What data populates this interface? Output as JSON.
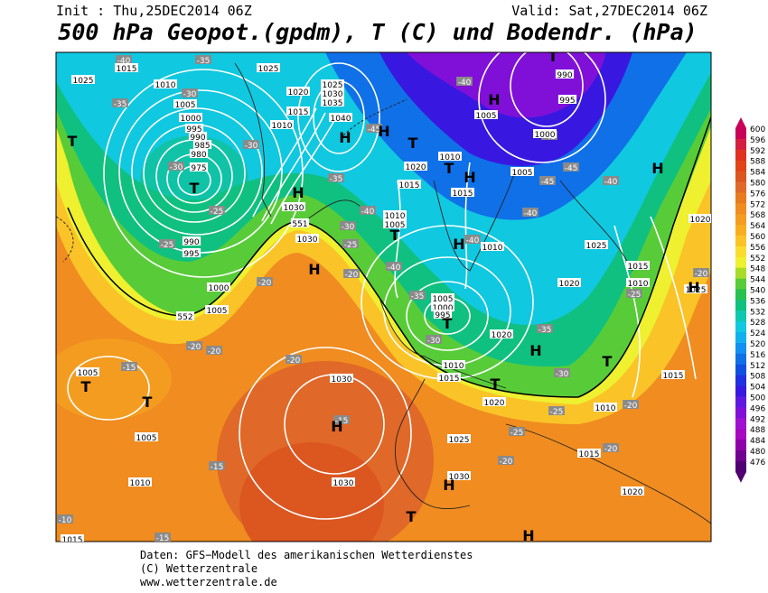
{
  "header": {
    "init": "Init : Thu,25DEC2014 06Z",
    "valid": "Valid: Sat,27DEC2014 06Z",
    "title": "500 hPa Geopot.(gpdm), T (C) und Bodendr. (hPa)"
  },
  "map": {
    "isobar_labels": [
      "1015",
      "1025",
      "1025",
      "1010",
      "1005",
      "1000",
      "995",
      "990",
      "985",
      "980",
      "975",
      "1020",
      "1025",
      "1030",
      "1035",
      "1015",
      "1040",
      "1010",
      "990",
      "995",
      "1005",
      "1000",
      "1005",
      "1020",
      "1010",
      "1015",
      "1015",
      "1030",
      "1010",
      "1005",
      "1010",
      "1025",
      "1020",
      "1030",
      "990",
      "995",
      "1000",
      "1005",
      "1015",
      "1010",
      "1020",
      "1025",
      "1005",
      "1000",
      "995",
      "1020",
      "1010",
      "1015",
      "1020",
      "1005",
      "1005",
      "1010",
      "1030",
      "1025",
      "1030",
      "1030",
      "1010",
      "1015",
      "1020",
      "1015",
      "1015",
      "552",
      "551"
    ],
    "pressure_centers": [
      "T",
      "T",
      "H",
      "H",
      "T",
      "H",
      "T",
      "T",
      "H",
      "H",
      "H",
      "T",
      "H",
      "H",
      "T",
      "H",
      "T",
      "T",
      "T",
      "H",
      "H",
      "T",
      "H",
      "T",
      "H"
    ],
    "temperature_labels": [
      "-40",
      "-35",
      "-30",
      "-35",
      "-30",
      "-30",
      "-25",
      "-25",
      "-20",
      "-20",
      "-20",
      "-20",
      "-15",
      "-15",
      "-10",
      "-15",
      "-45",
      "-40",
      "-35",
      "-30",
      "-25",
      "-20",
      "-40",
      "-40",
      "-35",
      "-30",
      "-40",
      "-40",
      "-45",
      "-45",
      "-45",
      "-40",
      "-35",
      "-30",
      "-25",
      "-20",
      "-25",
      "-20",
      "-20",
      "-25",
      "-20",
      "-15"
    ]
  },
  "colorbar": {
    "labels": [
      600,
      596,
      592,
      588,
      584,
      580,
      576,
      572,
      568,
      564,
      560,
      556,
      552,
      548,
      544,
      540,
      536,
      532,
      528,
      524,
      520,
      516,
      512,
      508,
      504,
      500,
      496,
      492,
      488,
      484,
      480,
      476
    ],
    "colors": [
      "#c8005a",
      "#d42040",
      "#e03020",
      "#e04418",
      "#dc5620",
      "#e06828",
      "#e87a20",
      "#f08c20",
      "#f49c20",
      "#f8ae20",
      "#fac428",
      "#fadc30",
      "#eef030",
      "#a8dc28",
      "#58cc38",
      "#28c050",
      "#10c080",
      "#10c8b0",
      "#10c8e0",
      "#10b0f0",
      "#1090f0",
      "#1070e8",
      "#1050e0",
      "#2030e0",
      "#3818e0",
      "#6018e0",
      "#8010d8",
      "#a010d0",
      "#a808c0",
      "#9000a8",
      "#700090",
      "#500070"
    ]
  },
  "footer": {
    "source": "Daten: GFS−Modell des amerikanischen Wetterdienstes",
    "copyright": "(C) Wetterzentrale",
    "url": "www.wetterzentrale.de"
  }
}
